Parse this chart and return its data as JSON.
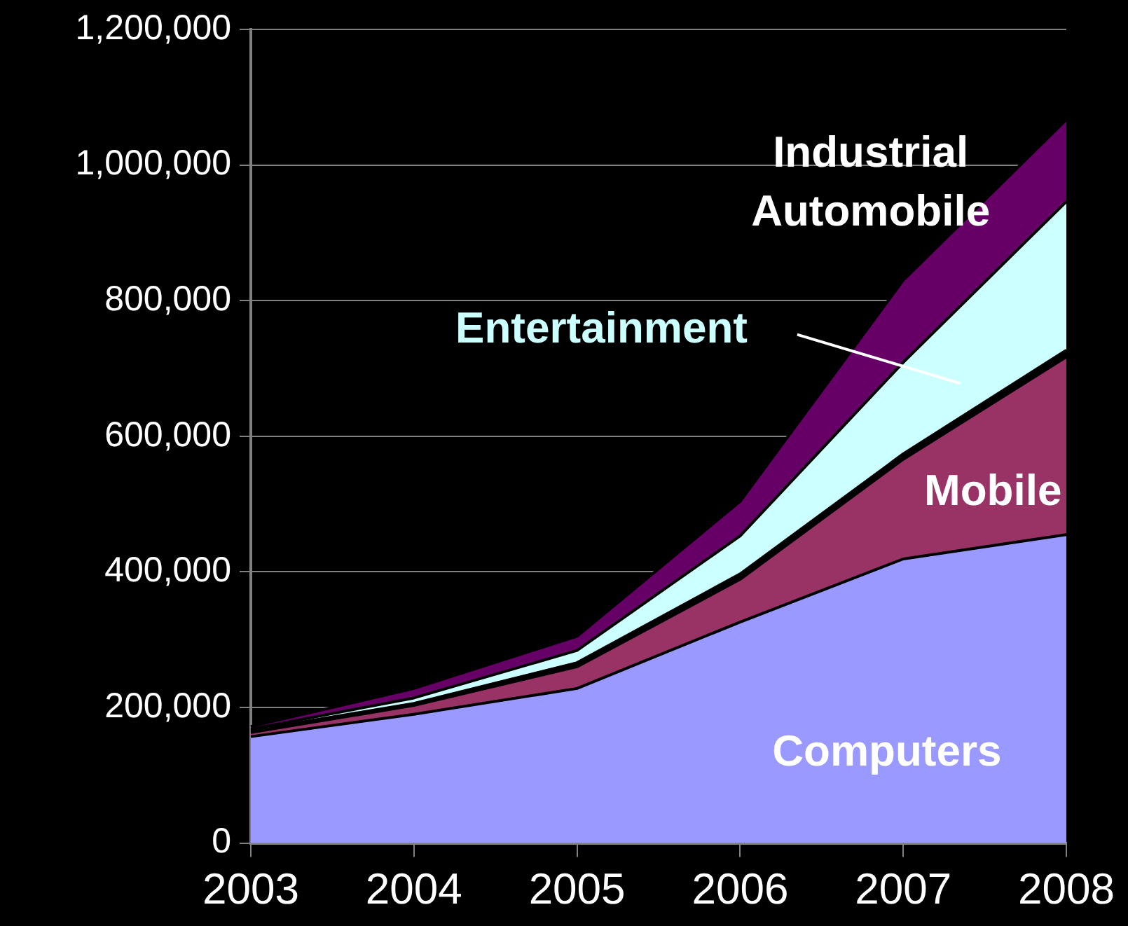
{
  "chart_data": {
    "type": "area",
    "stacked": true,
    "categories": [
      "2003",
      "2004",
      "2005",
      "2006",
      "2007",
      "2008"
    ],
    "ylim": [
      0,
      1200000
    ],
    "yticks": [
      {
        "value": 0,
        "label": "0"
      },
      {
        "value": 200000,
        "label": "200,000"
      },
      {
        "value": 400000,
        "label": "400,000"
      },
      {
        "value": 600000,
        "label": "600,000"
      },
      {
        "value": 800000,
        "label": "800,000"
      },
      {
        "value": 1000000,
        "label": "1,000,000"
      },
      {
        "value": 1200000,
        "label": "1,200,000"
      }
    ],
    "grid": "y",
    "legend": false,
    "series": [
      {
        "name": "Computers",
        "color": "#9999ff",
        "values": [
          157000,
          190000,
          228000,
          326000,
          419000,
          455000
        ]
      },
      {
        "name": "Mobile",
        "color": "#993366",
        "values": [
          6000,
          13000,
          32000,
          63000,
          147000,
          262000
        ]
      },
      {
        "color": "#000000",
        "values": [
          3000,
          3000,
          6000,
          8000,
          8000,
          10000
        ]
      },
      {
        "name": "Entertainment",
        "color": "#ccffff",
        "values": [
          2000,
          8000,
          18000,
          56000,
          135000,
          219000
        ]
      },
      {
        "name": "Industrial Automobile",
        "color": "#660066",
        "values": [
          4000,
          14000,
          21000,
          51000,
          121000,
          121000
        ]
      }
    ]
  }
}
